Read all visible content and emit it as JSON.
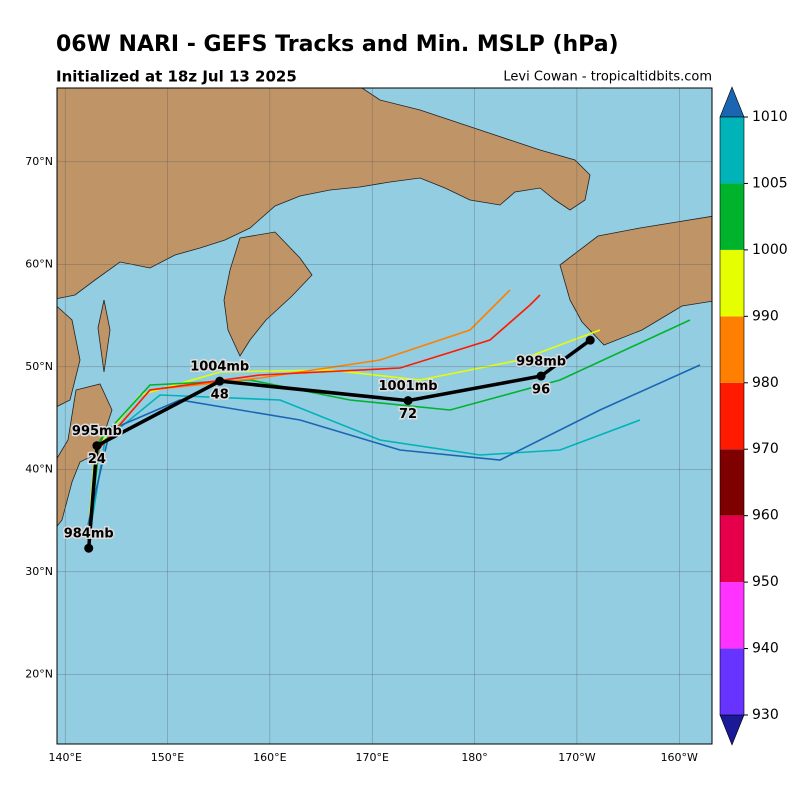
{
  "header": {
    "title": "06W NARI - GEFS Tracks and Min. MSLP (hPa)",
    "subtitle": "Initialized at 18z Jul 13 2025",
    "credit": "Levi Cowan - tropicaltidbits.com"
  },
  "map": {
    "lonlim": [
      139.2,
      203.2
    ],
    "latlim": [
      13.2,
      77.2
    ],
    "lonticks": [
      {
        "value": 140,
        "label": "140°E"
      },
      {
        "value": 150,
        "label": "150°E"
      },
      {
        "value": 160,
        "label": "160°E"
      },
      {
        "value": 170,
        "label": "170°E"
      },
      {
        "value": 180,
        "label": "180°"
      },
      {
        "value": 190,
        "label": "170°W"
      },
      {
        "value": 200,
        "label": "160°W"
      }
    ],
    "latticks": [
      {
        "value": 20,
        "label": "20°N"
      },
      {
        "value": 30,
        "label": "30°N"
      },
      {
        "value": 40,
        "label": "40°N"
      },
      {
        "value": 50,
        "label": "50°N"
      },
      {
        "value": 60,
        "label": "60°N"
      },
      {
        "value": 70,
        "label": "70°N"
      }
    ],
    "mean_track": [
      {
        "lon": 142.3,
        "lat": 32.3,
        "pressure_label": "984mb"
      },
      {
        "lon": 143.1,
        "lat": 42.3,
        "pressure_label": "995mb",
        "hour": 24
      },
      {
        "lon": 155.1,
        "lat": 48.6,
        "pressure_label": "1004mb",
        "hour": 48
      },
      {
        "lon": 173.5,
        "lat": 46.7,
        "pressure_label": "1001mb",
        "hour": 72
      },
      {
        "lon": 186.5,
        "lat": 49.1,
        "pressure_label": "998mb",
        "hour": 96
      },
      {
        "lon": 191.3,
        "lat": 52.6
      }
    ]
  },
  "colorbar": {
    "bounds": [
      930,
      940,
      950,
      960,
      970,
      980,
      990,
      1000,
      1005,
      1010
    ],
    "colors": [
      "#6633ff",
      "#ff33ff",
      "#e6004c",
      "#7f0000",
      "#ff1a00",
      "#ff8000",
      "#e5ff00",
      "#00b32c",
      "#00b3b8"
    ],
    "under_color": "#1a1a99",
    "over_color": "#1a66b3"
  }
}
